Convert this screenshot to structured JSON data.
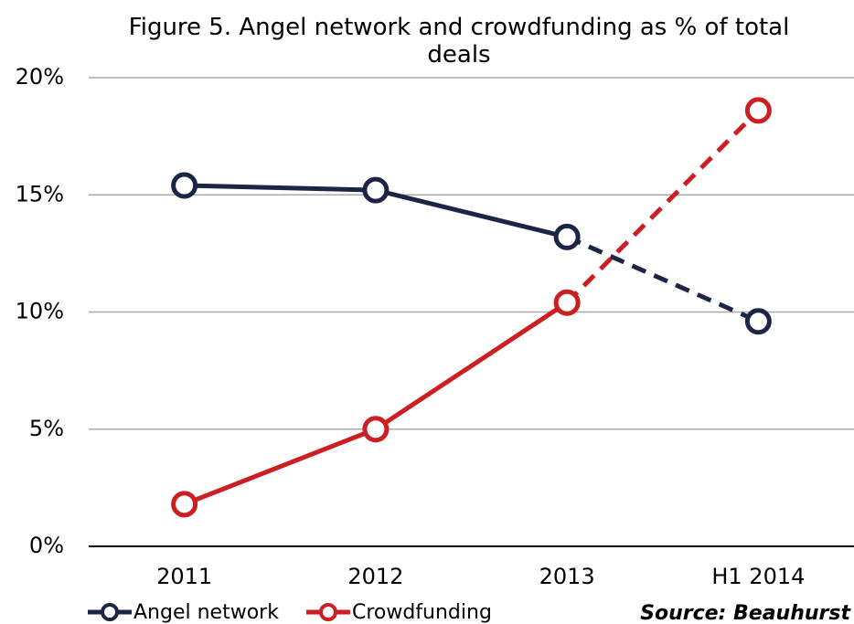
{
  "chart_data": {
    "type": "line",
    "title": "Figure 5. Angel network and crowdfunding as % of total deals",
    "categories": [
      "2011",
      "2012",
      "2013",
      "H1 2014"
    ],
    "series": [
      {
        "name": "Angel network",
        "color": "#1b2545",
        "values": [
          15.4,
          15.2,
          13.2,
          9.6
        ]
      },
      {
        "name": "Crowdfunding",
        "color": "#cc1f24",
        "values": [
          1.8,
          5.0,
          10.4,
          18.6
        ]
      }
    ],
    "dashed_last_segment": true,
    "ylim": [
      0,
      20
    ],
    "yticks": [
      {
        "value": 0,
        "label": "0%"
      },
      {
        "value": 5,
        "label": "5%"
      },
      {
        "value": 10,
        "label": "10%"
      },
      {
        "value": 15,
        "label": "15%"
      },
      {
        "value": 20,
        "label": "20%"
      }
    ],
    "grid": true,
    "legend": "bottom-left",
    "source": "Source: Beauhurst"
  }
}
